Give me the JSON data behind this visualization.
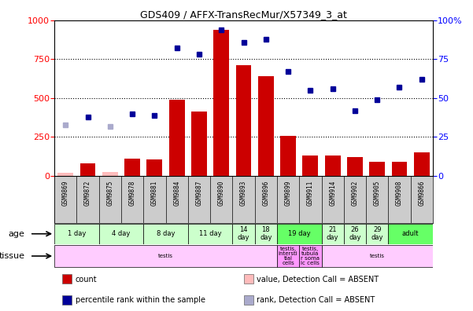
{
  "title": "GDS409 / AFFX-TransRecMur/X57349_3_at",
  "samples": [
    "GSM9869",
    "GSM9872",
    "GSM9875",
    "GSM9878",
    "GSM9881",
    "GSM9884",
    "GSM9887",
    "GSM9890",
    "GSM9893",
    "GSM9896",
    "GSM9899",
    "GSM9911",
    "GSM9914",
    "GSM9902",
    "GSM9905",
    "GSM9908",
    "GSM9866"
  ],
  "count_values": [
    22,
    80,
    25,
    110,
    105,
    490,
    415,
    940,
    710,
    640,
    255,
    130,
    130,
    120,
    90,
    90,
    150
  ],
  "count_absent": [
    true,
    false,
    true,
    false,
    false,
    false,
    false,
    false,
    false,
    false,
    false,
    false,
    false,
    false,
    false,
    false,
    false
  ],
  "percentile_values": [
    33,
    38,
    32,
    40,
    39,
    82,
    78,
    94,
    86,
    88,
    67,
    55,
    56,
    42,
    49,
    57,
    62
  ],
  "percentile_absent": [
    true,
    false,
    true,
    false,
    false,
    false,
    false,
    false,
    false,
    false,
    false,
    false,
    false,
    false,
    false,
    false,
    false
  ],
  "bar_color_present": "#cc0000",
  "bar_color_absent": "#ffbbbb",
  "dot_color_present": "#000099",
  "dot_color_absent": "#aaaacc",
  "ylim_left": [
    0,
    1000
  ],
  "ylim_right": [
    0,
    100
  ],
  "yticks_left": [
    0,
    250,
    500,
    750,
    1000
  ],
  "yticks_right": [
    0,
    25,
    50,
    75,
    100
  ],
  "age_groups": [
    {
      "label": "1 day",
      "start": 0,
      "end": 2,
      "color": "#ccffcc"
    },
    {
      "label": "4 day",
      "start": 2,
      "end": 4,
      "color": "#ccffcc"
    },
    {
      "label": "8 day",
      "start": 4,
      "end": 6,
      "color": "#ccffcc"
    },
    {
      "label": "11 day",
      "start": 6,
      "end": 8,
      "color": "#ccffcc"
    },
    {
      "label": "14\nday",
      "start": 8,
      "end": 9,
      "color": "#ccffcc"
    },
    {
      "label": "18\nday",
      "start": 9,
      "end": 10,
      "color": "#ccffcc"
    },
    {
      "label": "19 day",
      "start": 10,
      "end": 12,
      "color": "#66ff66"
    },
    {
      "label": "21\nday",
      "start": 12,
      "end": 13,
      "color": "#ccffcc"
    },
    {
      "label": "26\nday",
      "start": 13,
      "end": 14,
      "color": "#ccffcc"
    },
    {
      "label": "29\nday",
      "start": 14,
      "end": 15,
      "color": "#ccffcc"
    },
    {
      "label": "adult",
      "start": 15,
      "end": 17,
      "color": "#66ff66"
    }
  ],
  "tissue_groups": [
    {
      "label": "testis",
      "start": 0,
      "end": 10,
      "color": "#ffccff"
    },
    {
      "label": "testis,\nintersti\ntial\ncells",
      "start": 10,
      "end": 11,
      "color": "#ff99ff"
    },
    {
      "label": "testis,\ntubula\nr soma\nic cells",
      "start": 11,
      "end": 12,
      "color": "#ff99ff"
    },
    {
      "label": "testis",
      "start": 12,
      "end": 17,
      "color": "#ffccff"
    }
  ],
  "legend_items": [
    {
      "label": "count",
      "color": "#cc0000"
    },
    {
      "label": "percentile rank within the sample",
      "color": "#000099"
    },
    {
      "label": "value, Detection Call = ABSENT",
      "color": "#ffbbbb"
    },
    {
      "label": "rank, Detection Call = ABSENT",
      "color": "#aaaacc"
    }
  ],
  "chart_bg": "#ffffff",
  "xticklabel_bg": "#cccccc"
}
